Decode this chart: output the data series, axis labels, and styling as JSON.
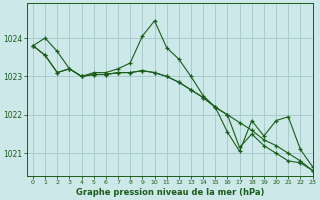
{
  "title": "Graphe pression niveau de la mer (hPa)",
  "bg_color": "#cce8e8",
  "grid_color": "#aacccc",
  "line_color": "#1a5c1a",
  "xlim": [
    -0.5,
    23
  ],
  "ylim": [
    1020.4,
    1024.9
  ],
  "yticks": [
    1021,
    1022,
    1023,
    1024
  ],
  "xticks": [
    0,
    1,
    2,
    3,
    4,
    5,
    6,
    7,
    8,
    9,
    10,
    11,
    12,
    13,
    14,
    15,
    16,
    17,
    18,
    19,
    20,
    21,
    22,
    23
  ],
  "series": [
    {
      "x": [
        0,
        1,
        2,
        3,
        4,
        5,
        6,
        7,
        8,
        9,
        10,
        11,
        12,
        13,
        14,
        15,
        16,
        17,
        18,
        19,
        20,
        21,
        22,
        23
      ],
      "y": [
        1023.8,
        1024.0,
        1023.65,
        1023.2,
        1023.0,
        1023.1,
        1023.1,
        1023.2,
        1023.35,
        1024.05,
        1024.45,
        1023.75,
        1023.45,
        1023.0,
        1022.5,
        1022.2,
        1021.55,
        1021.05,
        1021.85,
        1021.45,
        1021.85,
        1021.95,
        1021.1,
        1020.65
      ]
    },
    {
      "x": [
        0,
        1,
        2,
        3,
        4,
        5,
        6,
        7,
        8,
        9,
        10,
        11,
        12,
        13,
        14,
        15,
        16,
        17,
        18,
        19,
        20,
        21,
        22,
        23
      ],
      "y": [
        1023.8,
        1023.55,
        1023.1,
        1023.2,
        1023.0,
        1023.05,
        1023.05,
        1023.1,
        1023.1,
        1023.15,
        1023.1,
        1023.0,
        1022.85,
        1022.65,
        1022.45,
        1022.2,
        1022.0,
        1021.8,
        1021.6,
        1021.35,
        1021.2,
        1021.0,
        1020.8,
        1020.55
      ]
    },
    {
      "x": [
        0,
        1,
        2,
        3,
        4,
        5,
        6,
        7,
        8,
        9,
        10,
        11,
        12,
        13,
        14,
        15,
        16,
        17,
        18,
        19,
        20,
        21,
        22,
        23
      ],
      "y": [
        1023.8,
        1023.55,
        1023.1,
        1023.2,
        1023.0,
        1023.05,
        1023.05,
        1023.1,
        1023.1,
        1023.15,
        1023.1,
        1023.0,
        1022.85,
        1022.65,
        1022.45,
        1022.2,
        1022.0,
        1021.15,
        1021.5,
        1021.2,
        1021.0,
        1020.8,
        1020.75,
        1020.55
      ]
    }
  ]
}
